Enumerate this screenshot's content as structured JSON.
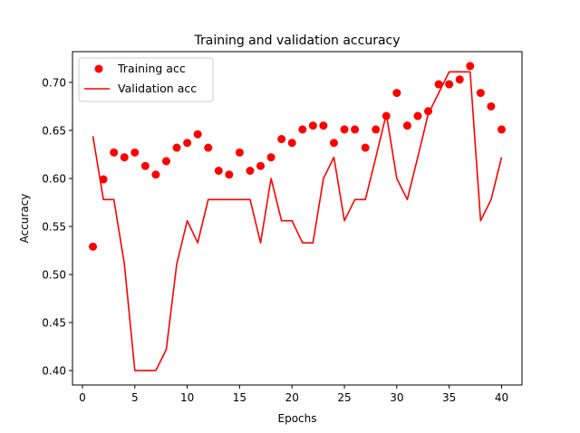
{
  "chart_data": {
    "type": "line",
    "title": "Training and validation accuracy",
    "xlabel": "Epochs",
    "ylabel": "Accuracy",
    "xlim": [
      -0.95,
      41.95
    ],
    "ylim": [
      0.385,
      0.732
    ],
    "xticks": [
      0,
      5,
      10,
      15,
      20,
      25,
      30,
      35,
      40
    ],
    "yticks": [
      0.4,
      0.45,
      0.5,
      0.55,
      0.6,
      0.65,
      0.7
    ],
    "legend_position": "top-left",
    "grid": false,
    "x": [
      1,
      2,
      3,
      4,
      5,
      6,
      7,
      8,
      9,
      10,
      11,
      12,
      13,
      14,
      15,
      16,
      17,
      18,
      19,
      20,
      21,
      22,
      23,
      24,
      25,
      26,
      27,
      28,
      29,
      30,
      31,
      32,
      33,
      34,
      35,
      36,
      37,
      38,
      39,
      40
    ],
    "series": [
      {
        "name": "Training acc",
        "style": "markers",
        "color": "#ff0000",
        "values": [
          0.529,
          0.599,
          0.627,
          0.622,
          0.627,
          0.613,
          0.604,
          0.618,
          0.632,
          0.637,
          0.646,
          0.632,
          0.608,
          0.604,
          0.627,
          0.608,
          0.613,
          0.622,
          0.641,
          0.637,
          0.651,
          0.655,
          0.655,
          0.637,
          0.651,
          0.651,
          0.632,
          0.651,
          0.665,
          0.689,
          0.655,
          0.665,
          0.67,
          0.698,
          0.698,
          0.703,
          0.717,
          0.689,
          0.675,
          0.651
        ]
      },
      {
        "name": "Validation acc",
        "style": "line",
        "color": "#ff0000",
        "values": [
          0.644,
          0.578,
          0.578,
          0.511,
          0.4,
          0.4,
          0.4,
          0.422,
          0.511,
          0.556,
          0.533,
          0.578,
          0.578,
          0.578,
          0.578,
          0.578,
          0.533,
          0.6,
          0.556,
          0.556,
          0.533,
          0.533,
          0.6,
          0.622,
          0.556,
          0.578,
          0.578,
          0.622,
          0.667,
          0.6,
          0.578,
          0.622,
          0.667,
          0.689,
          0.711,
          0.711,
          0.711,
          0.556,
          0.578,
          0.622
        ]
      }
    ]
  }
}
